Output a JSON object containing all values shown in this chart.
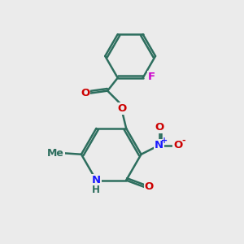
{
  "bg_color": "#ebebeb",
  "bond_color": "#2d6e5e",
  "bond_width": 1.8,
  "fig_size": [
    3.0,
    3.0
  ],
  "dpi": 100,
  "atom_colors": {
    "N": "#1a1aff",
    "O": "#cc0000",
    "F": "#cc00cc",
    "C": "#2d6e5e"
  },
  "font_size": 9.5,
  "charge_font_size": 7
}
